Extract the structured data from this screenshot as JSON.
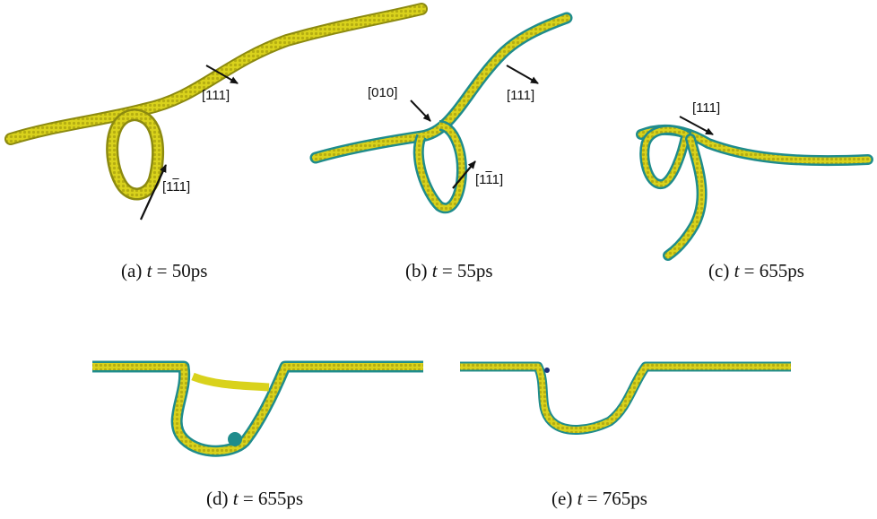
{
  "figure": {
    "panels": [
      {
        "id": "a",
        "caption_prefix": "(a) ",
        "caption_var": "t",
        "caption_value": " = 50ps",
        "labels": [
          {
            "id": "a-111",
            "parts": [
              "[111]"
            ]
          },
          {
            "id": "a-1m11",
            "parts": [
              "[1",
              "1",
              "1]"
            ]
          }
        ]
      },
      {
        "id": "b",
        "caption_prefix": "(b) ",
        "caption_var": "t",
        "caption_value": " = 55ps",
        "labels": [
          {
            "id": "b-010",
            "parts": [
              "[010]"
            ]
          },
          {
            "id": "b-111",
            "parts": [
              "[111]"
            ]
          },
          {
            "id": "b-1m11",
            "parts": [
              "[1",
              "1",
              "1]"
            ]
          }
        ]
      },
      {
        "id": "c",
        "caption_prefix": "(c) ",
        "caption_var": "t",
        "caption_value": " = 655ps",
        "labels": [
          {
            "id": "c-111",
            "parts": [
              "[111]"
            ]
          }
        ]
      },
      {
        "id": "d",
        "caption_prefix": "(d) ",
        "caption_var": "t",
        "caption_value": " = 655ps",
        "labels": []
      },
      {
        "id": "e",
        "caption_prefix": "(e) ",
        "caption_var": "t",
        "caption_value": " = 765ps",
        "labels": []
      }
    ],
    "colors": {
      "yellow": "#d9d21c",
      "yellow_dark": "#8c8a10",
      "teal": "#1f8c8c",
      "navy": "#1a2f7a"
    }
  }
}
